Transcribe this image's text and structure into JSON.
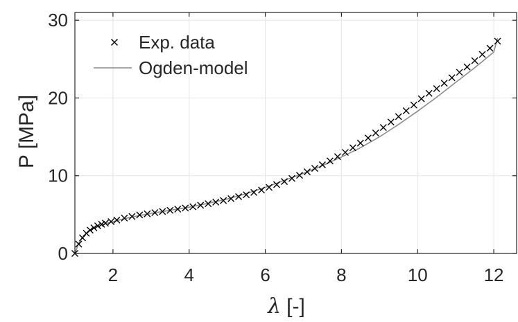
{
  "chart_data": {
    "type": "scatter",
    "title": "",
    "xlabel_symbol": "λ",
    "xlabel_unit": "[-]",
    "ylabel": "P [MPa]",
    "xlim": [
      1,
      12.6
    ],
    "ylim": [
      0,
      31
    ],
    "xticks": [
      2,
      4,
      6,
      8,
      10,
      12
    ],
    "yticks": [
      0,
      10,
      20,
      30
    ],
    "grid": true,
    "legend_position": "top-left",
    "colors": {
      "data": "#000000",
      "model": "#8c8c8c",
      "grid": "#e6e6e6",
      "axis": "#262626"
    },
    "series": [
      {
        "name": "Exp. data",
        "style": "markers-x",
        "x": [
          1.0,
          1.1,
          1.2,
          1.3,
          1.4,
          1.5,
          1.6,
          1.7,
          1.8,
          1.95,
          2.1,
          2.3,
          2.5,
          2.7,
          2.9,
          3.1,
          3.3,
          3.5,
          3.7,
          3.9,
          4.1,
          4.3,
          4.5,
          4.7,
          4.9,
          5.1,
          5.3,
          5.5,
          5.7,
          5.9,
          6.1,
          6.3,
          6.5,
          6.7,
          6.9,
          7.1,
          7.3,
          7.5,
          7.7,
          7.9,
          8.1,
          8.3,
          8.5,
          8.7,
          8.9,
          9.1,
          9.3,
          9.5,
          9.7,
          9.9,
          10.1,
          10.3,
          10.5,
          10.7,
          10.9,
          11.1,
          11.3,
          11.5,
          11.7,
          11.9,
          12.1
        ],
        "y": [
          0.0,
          1.2,
          2.0,
          2.6,
          3.0,
          3.3,
          3.55,
          3.75,
          3.9,
          4.1,
          4.3,
          4.55,
          4.75,
          4.95,
          5.1,
          5.25,
          5.4,
          5.55,
          5.7,
          5.85,
          6.0,
          6.2,
          6.4,
          6.6,
          6.8,
          7.05,
          7.3,
          7.55,
          7.85,
          8.15,
          8.5,
          8.85,
          9.25,
          9.65,
          10.05,
          10.5,
          10.95,
          11.4,
          11.9,
          12.45,
          13.0,
          13.6,
          14.2,
          14.85,
          15.5,
          16.2,
          16.9,
          17.6,
          18.35,
          19.1,
          19.9,
          20.6,
          21.2,
          21.9,
          22.6,
          23.3,
          24.0,
          24.8,
          25.6,
          26.4,
          27.3
        ]
      },
      {
        "name": "Ogden-model",
        "style": "line",
        "x": [
          1.0,
          1.1,
          1.2,
          1.35,
          1.5,
          1.7,
          1.9,
          2.2,
          2.5,
          3.0,
          3.5,
          4.0,
          4.5,
          5.0,
          5.5,
          6.0,
          6.5,
          7.0,
          7.5,
          8.0,
          8.5,
          9.0,
          9.5,
          10.0,
          10.5,
          11.0,
          11.5,
          12.0,
          12.1
        ],
        "y": [
          0.0,
          1.3,
          2.1,
          2.8,
          3.25,
          3.65,
          3.95,
          4.35,
          4.7,
          5.15,
          5.55,
          5.95,
          6.45,
          7.0,
          7.7,
          8.5,
          9.4,
          10.3,
          11.3,
          12.4,
          13.6,
          15.0,
          16.6,
          18.3,
          20.1,
          22.0,
          23.9,
          25.9,
          27.7
        ]
      }
    ]
  }
}
